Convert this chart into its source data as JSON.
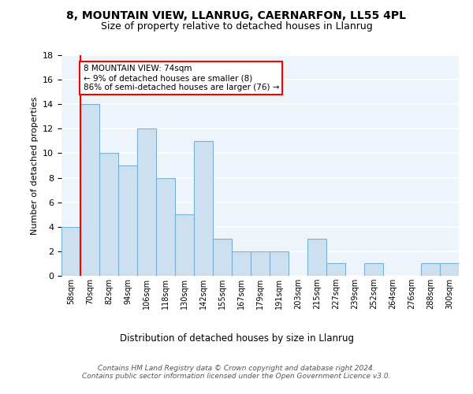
{
  "title1": "8, MOUNTAIN VIEW, LLANRUG, CAERNARFON, LL55 4PL",
  "title2": "Size of property relative to detached houses in Llanrug",
  "xlabel": "Distribution of detached houses by size in Llanrug",
  "ylabel": "Number of detached properties",
  "bin_labels": [
    "58sqm",
    "70sqm",
    "82sqm",
    "94sqm",
    "106sqm",
    "118sqm",
    "130sqm",
    "142sqm",
    "155sqm",
    "167sqm",
    "179sqm",
    "191sqm",
    "203sqm",
    "215sqm",
    "227sqm",
    "239sqm",
    "252sqm",
    "264sqm",
    "276sqm",
    "288sqm",
    "300sqm"
  ],
  "bar_heights": [
    4,
    14,
    10,
    9,
    12,
    8,
    5,
    11,
    3,
    2,
    2,
    2,
    0,
    3,
    1,
    0,
    1,
    0,
    0,
    1,
    1
  ],
  "bar_color": "#cce0f0",
  "bar_edge_color": "#7ab0d4",
  "annotation_line_index": 1,
  "annotation_box_text": "8 MOUNTAIN VIEW: 74sqm\n← 9% of detached houses are smaller (8)\n86% of semi-detached houses are larger (76) →",
  "annotation_box_color": "white",
  "annotation_box_edge_color": "red",
  "vline_color": "red",
  "ylim": [
    0,
    18
  ],
  "yticks": [
    0,
    2,
    4,
    6,
    8,
    10,
    12,
    14,
    16,
    18
  ],
  "footer_text": "Contains HM Land Registry data © Crown copyright and database right 2024.\nContains public sector information licensed under the Open Government Licence v3.0.",
  "bg_color": "#eef4fb",
  "grid_color": "white"
}
